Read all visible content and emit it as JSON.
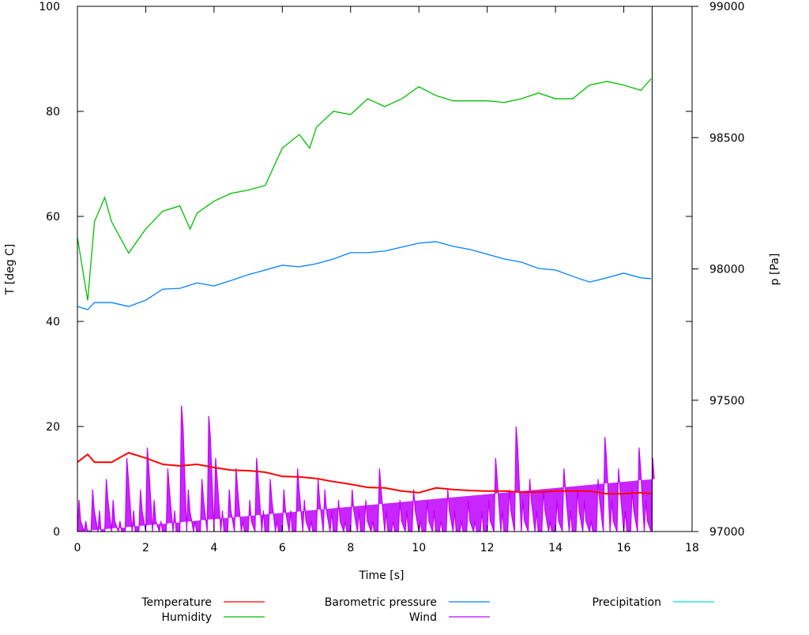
{
  "chart_data": {
    "type": "line",
    "title": "",
    "xlabel": "Time [s]",
    "ylabel": "T [deg C]",
    "y2label": "p [Pa]",
    "xlim": [
      0,
      18
    ],
    "ylim": [
      0,
      100
    ],
    "y2lim": [
      97000,
      99000
    ],
    "xticks": [
      0,
      2,
      4,
      6,
      8,
      10,
      12,
      14,
      16,
      18
    ],
    "yticks": [
      0,
      20,
      40,
      60,
      80,
      100
    ],
    "y2ticks": [
      97000,
      97500,
      98000,
      98500,
      99000
    ],
    "grid": false,
    "legend_position": "bottom",
    "marker_x": 16.83,
    "series": [
      {
        "name": "Temperature",
        "color": "#ff0000",
        "axis": "left",
        "x": [
          0,
          0.3,
          0.5,
          1,
          1.5,
          2,
          2.5,
          3,
          3.5,
          4,
          4.5,
          5,
          5.5,
          6,
          6.5,
          7,
          7.5,
          8,
          8.5,
          9,
          9.5,
          10,
          10.5,
          11,
          11.5,
          12,
          12.5,
          13,
          13.5,
          14,
          14.5,
          15,
          15.5,
          16,
          16.5,
          16.8
        ],
        "y": [
          13.2,
          14.7,
          13.2,
          13.2,
          15,
          14,
          12.8,
          12.5,
          12.8,
          12.2,
          11.7,
          11.6,
          11.3,
          10.5,
          10.4,
          10.1,
          9.5,
          9,
          8.4,
          8.3,
          7.7,
          7.4,
          8.3,
          8,
          7.8,
          7.7,
          7.7,
          7.5,
          7.5,
          7.7,
          7.7,
          7.7,
          7.2,
          7.2,
          7.4,
          7.2
        ]
      },
      {
        "name": "Humidity",
        "color": "#00c000",
        "axis": "left",
        "x": [
          0,
          0.3,
          0.5,
          0.8,
          1,
          1.5,
          2,
          2.5,
          3,
          3.3,
          3.5,
          4,
          4.5,
          5,
          5.5,
          6,
          6.5,
          6.8,
          7,
          7.5,
          8,
          8.5,
          9,
          9.5,
          10,
          10.5,
          11,
          12,
          12.5,
          13,
          13.5,
          14,
          14.5,
          15,
          15.5,
          16,
          16.5,
          16.8
        ],
        "y": [
          56,
          44,
          59,
          63.6,
          59,
          53,
          57.6,
          61,
          62,
          57.6,
          60.6,
          62.9,
          64.4,
          65,
          65.9,
          73,
          75.6,
          73,
          77,
          80,
          79.4,
          82.4,
          80.9,
          82.4,
          84.7,
          83,
          82,
          82,
          81.7,
          82.4,
          83.5,
          82.4,
          82.4,
          85,
          85.7,
          85,
          84,
          86.2
        ]
      },
      {
        "name": "Barometric pressure",
        "color": "#0080ff",
        "axis": "right",
        "x": [
          0,
          0.3,
          0.5,
          1,
          1.5,
          2,
          2.5,
          3,
          3.5,
          4,
          4.5,
          5,
          5.5,
          6,
          6.5,
          7,
          7.5,
          8,
          8.5,
          9,
          9.5,
          10,
          10.5,
          11,
          11.5,
          12,
          12.5,
          13,
          13.5,
          14,
          14.5,
          15,
          15.5,
          16,
          16.5,
          16.8
        ],
        "y": [
          97857,
          97845,
          97872,
          97872,
          97857,
          97881,
          97923,
          97926,
          97947,
          97935,
          97956,
          97978,
          97996,
          98014,
          98008,
          98020,
          98038,
          98062,
          98062,
          98068,
          98083,
          98098,
          98104,
          98086,
          98074,
          98056,
          98038,
          98026,
          98002,
          97996,
          97972,
          97950,
          97966,
          97984,
          97966,
          97963
        ]
      },
      {
        "name": "Wind",
        "color": "#c000ff",
        "axis": "left",
        "x_start": 0,
        "x_step": 0.2,
        "y": [
          6,
          2,
          8,
          4,
          10,
          6,
          2,
          14,
          4,
          8,
          16,
          6,
          2,
          12,
          4,
          24,
          8,
          2,
          10,
          22,
          14,
          4,
          8,
          12,
          2,
          6,
          14,
          4,
          10,
          2,
          8,
          4,
          12,
          6,
          2,
          10,
          8,
          4,
          6,
          2,
          8,
          4,
          6,
          2,
          12,
          4,
          2,
          6,
          4,
          8,
          2,
          6,
          4,
          2,
          8,
          4,
          2,
          6,
          2,
          4,
          6,
          14,
          4,
          8,
          20,
          6,
          10,
          4,
          8,
          2,
          6,
          12,
          4,
          8,
          6,
          2,
          10,
          18,
          6,
          12,
          4,
          8,
          16,
          6,
          14
        ]
      },
      {
        "name": "Precipitation",
        "color": "#00e0e0",
        "axis": "left",
        "x": [],
        "y": []
      }
    ]
  }
}
